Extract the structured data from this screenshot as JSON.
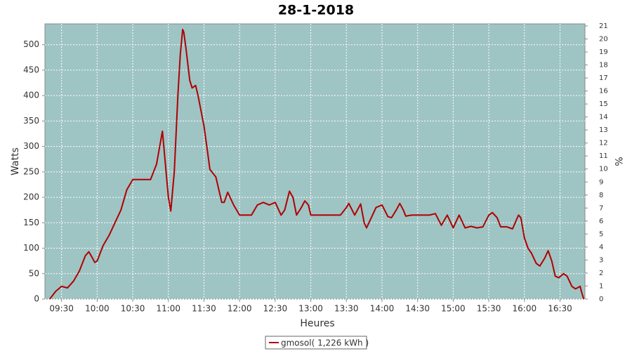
{
  "chart_data": {
    "type": "line",
    "title": "28-1-2018",
    "x_label": "Heures",
    "y_label": "Watts",
    "y2_label": "%",
    "x": [
      "09:20",
      "09:25",
      "09:30",
      "09:35",
      "09:40",
      "09:45",
      "09:50",
      "09:53",
      "09:55",
      "09:58",
      "10:00",
      "10:05",
      "10:10",
      "10:15",
      "10:20",
      "10:25",
      "10:30",
      "10:35",
      "10:40",
      "10:45",
      "10:50",
      "10:55",
      "11:00",
      "11:02",
      "11:05",
      "11:08",
      "11:10",
      "11:12",
      "11:13",
      "11:15",
      "11:18",
      "11:20",
      "11:23",
      "11:25",
      "11:30",
      "11:33",
      "11:35",
      "11:40",
      "11:45",
      "11:47",
      "11:50",
      "11:55",
      "12:00",
      "12:05",
      "12:10",
      "12:15",
      "12:20",
      "12:25",
      "12:30",
      "12:35",
      "12:38",
      "12:42",
      "12:45",
      "12:48",
      "12:52",
      "12:55",
      "12:58",
      "13:00",
      "13:05",
      "13:10",
      "13:15",
      "13:20",
      "13:25",
      "13:30",
      "13:32",
      "13:37",
      "13:42",
      "13:45",
      "13:47",
      "13:50",
      "13:55",
      "14:00",
      "14:05",
      "14:08",
      "14:12",
      "14:15",
      "14:18",
      "14:20",
      "14:25",
      "14:30",
      "14:35",
      "14:40",
      "14:45",
      "14:50",
      "14:55",
      "15:00",
      "15:05",
      "15:10",
      "15:15",
      "15:20",
      "15:25",
      "15:30",
      "15:33",
      "15:37",
      "15:40",
      "15:45",
      "15:50",
      "15:55",
      "15:57",
      "16:00",
      "16:03",
      "16:06",
      "16:10",
      "16:13",
      "16:17",
      "16:20",
      "16:23",
      "16:26",
      "16:29",
      "16:33",
      "16:36",
      "16:40",
      "16:43",
      "16:47",
      "16:48",
      "16:50"
    ],
    "series": [
      {
        "name": "gmosol( 1,226 kWh )",
        "color": "#b00000",
        "values": [
          0,
          15,
          25,
          22,
          35,
          55,
          85,
          93,
          85,
          72,
          75,
          105,
          125,
          150,
          175,
          215,
          235,
          235,
          235,
          235,
          265,
          330,
          200,
          173,
          250,
          400,
          480,
          530,
          525,
          490,
          430,
          415,
          420,
          400,
          340,
          290,
          255,
          240,
          190,
          190,
          210,
          185,
          165,
          165,
          165,
          185,
          190,
          185,
          190,
          165,
          175,
          212,
          200,
          165,
          180,
          193,
          185,
          165,
          165,
          165,
          165,
          165,
          165,
          180,
          188,
          165,
          187,
          150,
          140,
          155,
          180,
          185,
          162,
          160,
          175,
          188,
          175,
          163,
          165,
          165,
          165,
          165,
          168,
          145,
          165,
          140,
          165,
          140,
          143,
          140,
          142,
          165,
          170,
          160,
          142,
          142,
          138,
          165,
          160,
          120,
          100,
          90,
          70,
          65,
          80,
          95,
          75,
          45,
          42,
          50,
          45,
          25,
          20,
          25,
          15,
          0
        ]
      }
    ],
    "xlim": [
      "09:16",
      "16:51"
    ],
    "xticks": [
      "09:30",
      "10:00",
      "10:30",
      "11:00",
      "11:30",
      "12:00",
      "12:30",
      "13:00",
      "13:30",
      "14:00",
      "14:30",
      "15:00",
      "15:30",
      "16:00",
      "16:30"
    ],
    "ylim": [
      0,
      541
    ],
    "yticks": [
      0,
      50,
      100,
      150,
      200,
      250,
      300,
      350,
      400,
      450,
      500
    ],
    "y2lim": [
      0,
      21.16
    ],
    "y2ticks": [
      0,
      1,
      2,
      3,
      4,
      5,
      6,
      7,
      8,
      9,
      10,
      11,
      12,
      13,
      14,
      15,
      16,
      17,
      18,
      19,
      20,
      21
    ],
    "grid": true
  }
}
